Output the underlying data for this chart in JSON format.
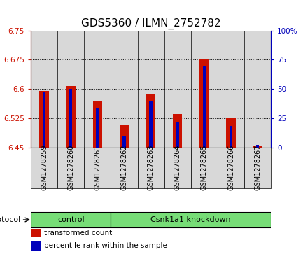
{
  "title": "GDS5360 / ILMN_2752782",
  "samples": [
    "GSM1278259",
    "GSM1278260",
    "GSM1278261",
    "GSM1278262",
    "GSM1278263",
    "GSM1278264",
    "GSM1278265",
    "GSM1278266",
    "GSM1278267"
  ],
  "red_values": [
    6.595,
    6.607,
    6.568,
    6.508,
    6.585,
    6.535,
    6.675,
    6.525,
    6.452
  ],
  "blue_values": [
    47,
    50,
    33,
    10,
    40,
    22,
    70,
    18,
    2
  ],
  "ylim_left": [
    6.45,
    6.75
  ],
  "ylim_right": [
    0,
    100
  ],
  "yticks_left": [
    6.45,
    6.525,
    6.6,
    6.675,
    6.75
  ],
  "yticks_right": [
    0,
    25,
    50,
    75,
    100
  ],
  "ytick_labels_left": [
    "6.45",
    "6.525",
    "6.6",
    "6.675",
    "6.75"
  ],
  "ytick_labels_right": [
    "0",
    "25",
    "50",
    "75",
    "100%"
  ],
  "red_color": "#cc1100",
  "blue_color": "#0000bb",
  "bar_bottom": 6.45,
  "control_indices": [
    0,
    1,
    2
  ],
  "knockdown_indices": [
    3,
    4,
    5,
    6,
    7,
    8
  ],
  "group_labels": [
    "control",
    "Csnk1a1 knockdown"
  ],
  "group_color": "#77dd77",
  "protocol_label": "protocol",
  "legend_red": "transformed count",
  "legend_blue": "percentile rank within the sample",
  "title_fontsize": 11,
  "tick_fontsize": 7.5,
  "label_fontsize": 7,
  "bg_color": "#d8d8d8",
  "plot_bg": "#ffffff",
  "red_bar_width": 0.35,
  "blue_bar_width": 0.12
}
